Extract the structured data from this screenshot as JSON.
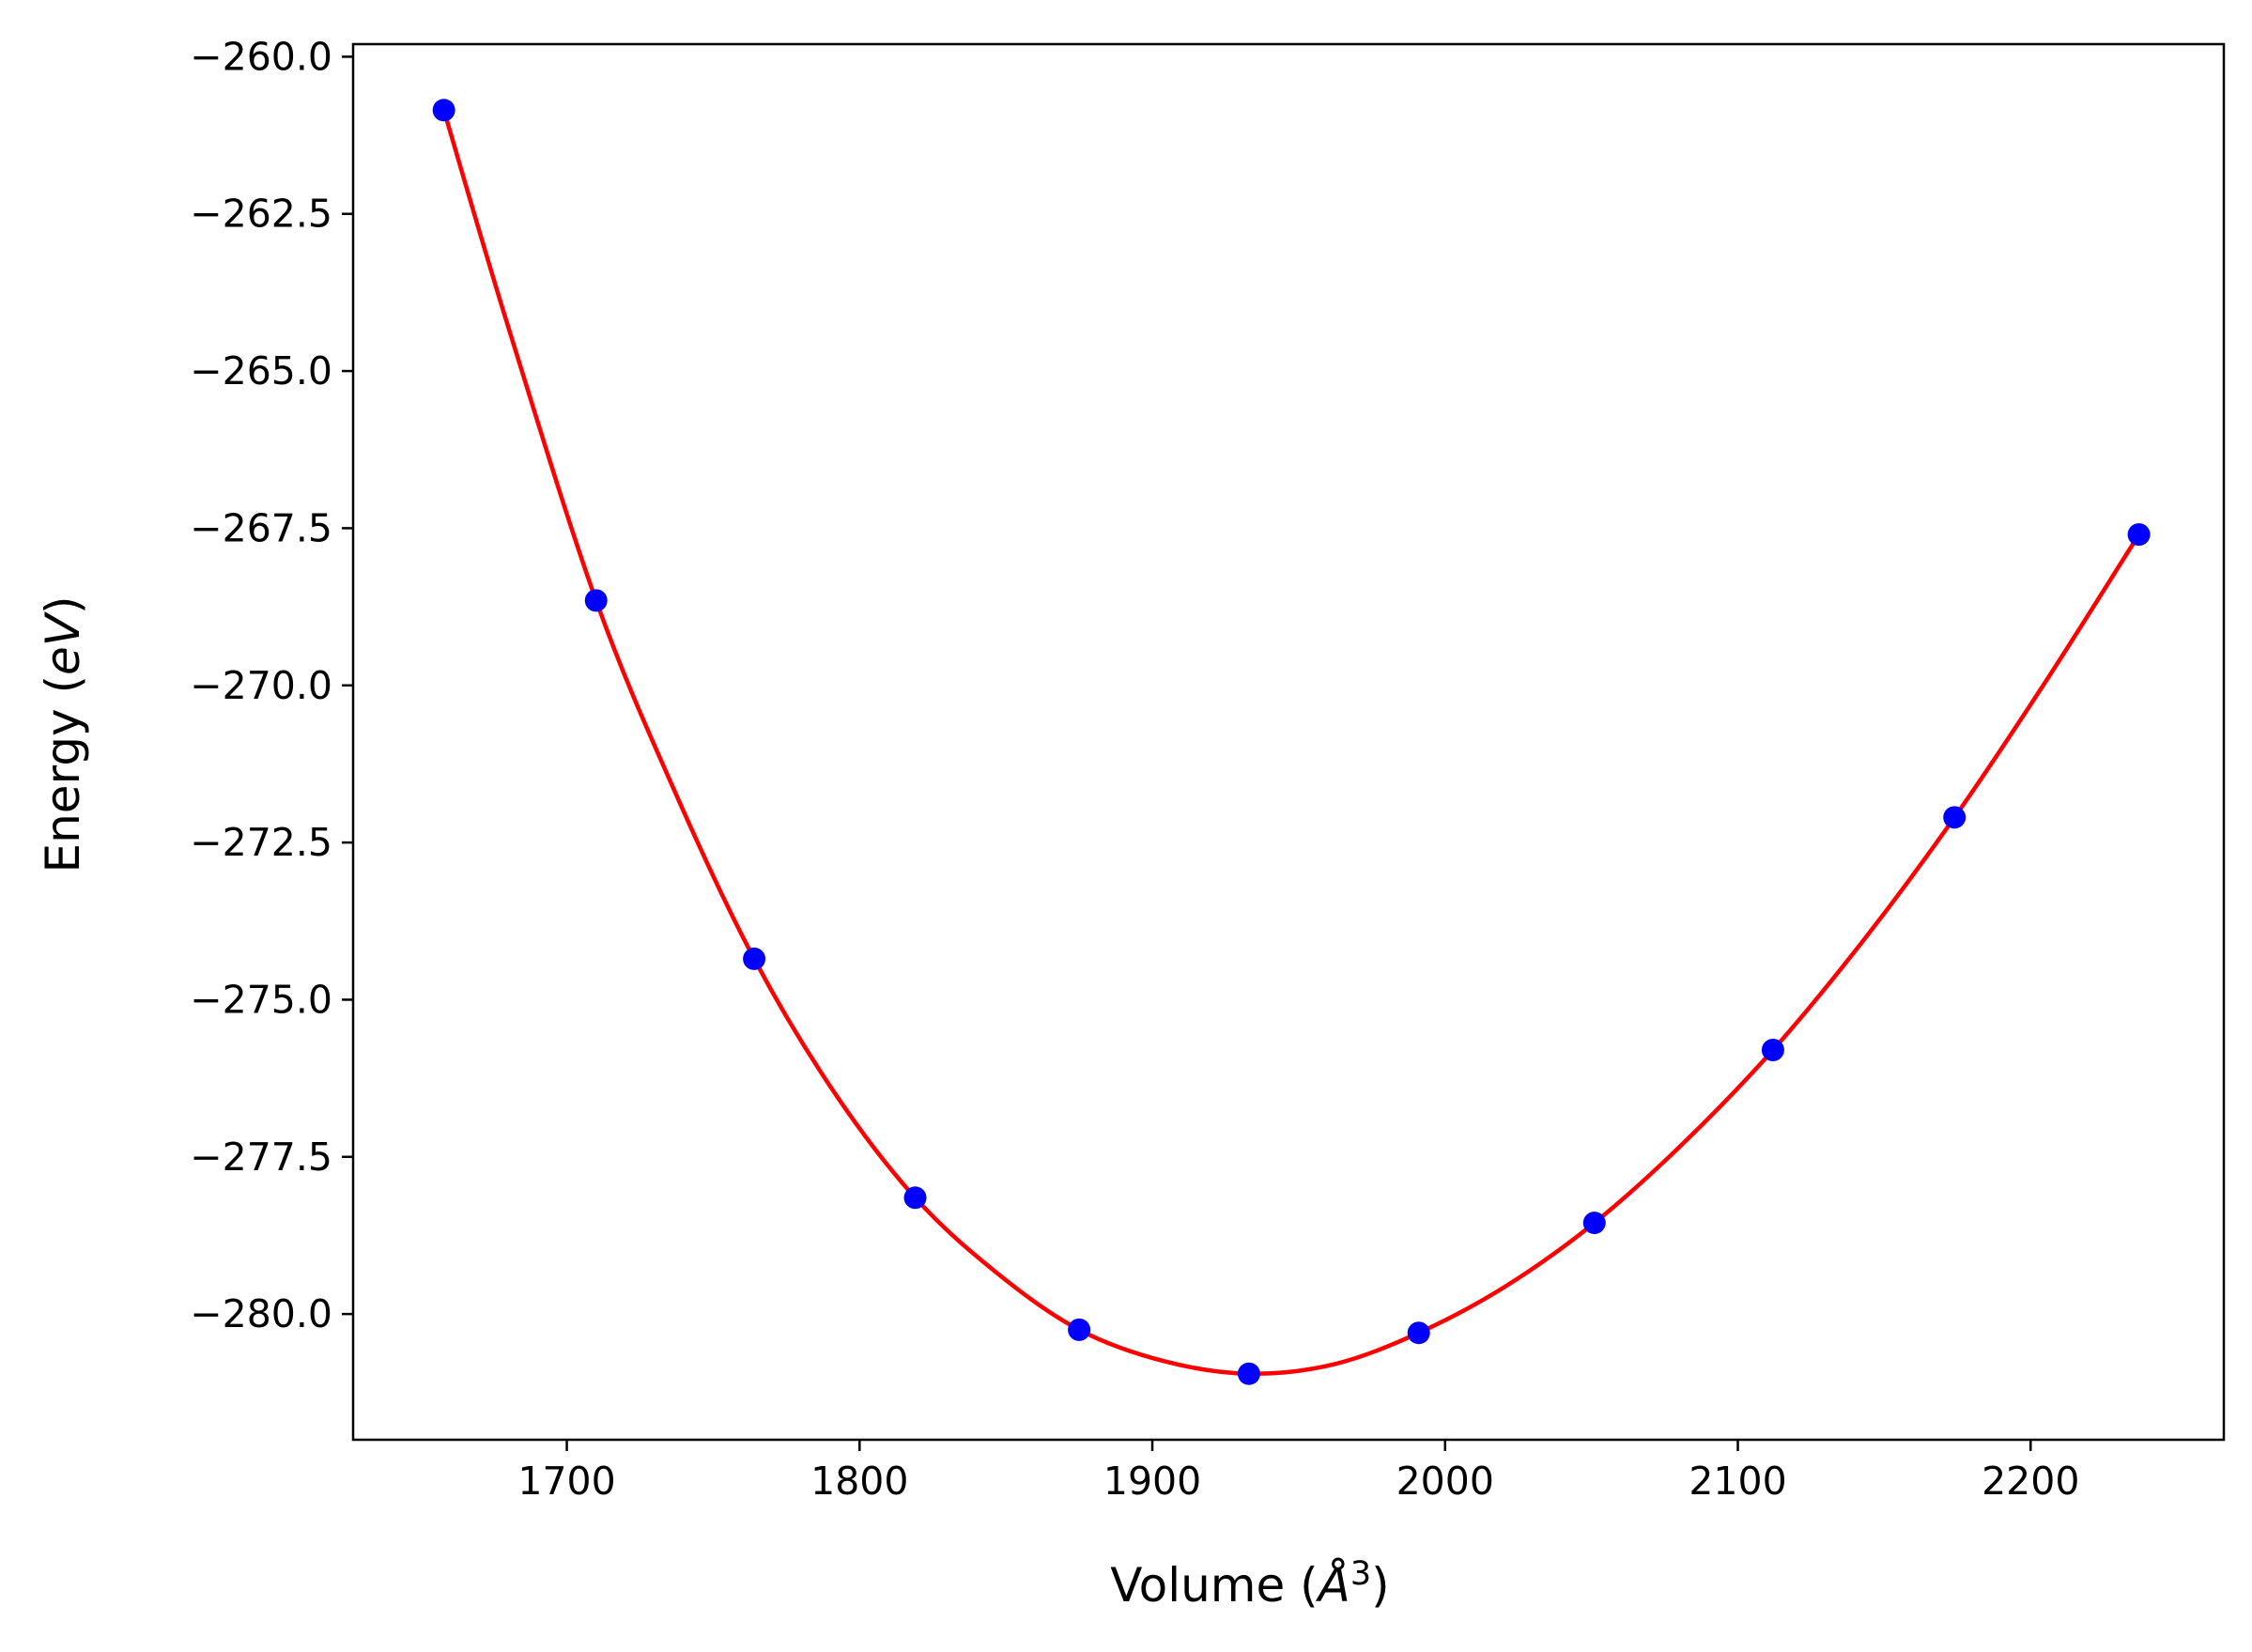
{
  "chart_data": {
    "type": "line",
    "title": "",
    "xlabel": "Volume ($\\AA^3$)",
    "xlabel_parts": {
      "text": "Volume (",
      "italic": "Å",
      "sup": "3",
      "close": ")"
    },
    "ylabel": "Energy ($eV$)",
    "ylabel_parts": {
      "text": "Energy (",
      "italic": "eV",
      "close": ")"
    },
    "xlim": [
      1627,
      2266
    ],
    "ylim": [
      -282.0,
      -259.8
    ],
    "xticks": [
      1700,
      1800,
      1900,
      2000,
      2100,
      2200
    ],
    "yticks": [
      -260.0,
      -262.5,
      -265.0,
      -267.5,
      -270.0,
      -272.5,
      -275.0,
      -277.5,
      -280.0
    ],
    "grid": false,
    "legend": "none",
    "colors": {
      "points": "#0000ff",
      "fit": "#ff0000",
      "axes": "#000000"
    },
    "series": [
      {
        "kind": "scatter",
        "x": [
          1658,
          1710,
          1764,
          1819,
          1875,
          1933,
          1991,
          2051,
          2112,
          2174,
          2237
        ],
        "y": [
          -260.85,
          -268.65,
          -274.35,
          -278.15,
          -280.25,
          -280.95,
          -280.3,
          -278.55,
          -275.8,
          -272.1,
          -267.6
        ]
      },
      {
        "kind": "fit",
        "x": [
          1658,
          1680,
          1710,
          1737,
          1764,
          1791,
          1819,
          1847,
          1875,
          1904,
          1933,
          1962,
          1991,
          2021,
          2051,
          2081,
          2112,
          2143,
          2174,
          2205,
          2237
        ],
        "y": [
          -260.85,
          -264.3,
          -268.65,
          -271.7,
          -274.35,
          -276.45,
          -278.15,
          -279.35,
          -280.25,
          -280.75,
          -280.95,
          -280.8,
          -280.3,
          -279.55,
          -278.55,
          -277.3,
          -275.8,
          -274.05,
          -272.1,
          -269.95,
          -267.6
        ]
      }
    ]
  }
}
